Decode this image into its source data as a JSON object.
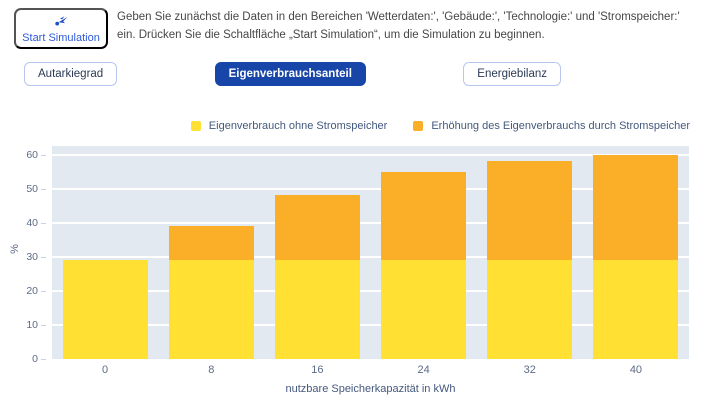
{
  "header": {
    "start_button_label": "Start Simulation",
    "instructions": "Geben Sie zunächst die Daten in den Bereichen 'Wetterdaten:', 'Gebäude:', 'Technologie:' und 'Stromspeicher:' ein. Drücken Sie die Schaltfläche „Start Simulation“, um die Simulation zu beginnen."
  },
  "tabs": [
    {
      "label": "Autarkiegrad",
      "active": false
    },
    {
      "label": "Eigenverbrauchsanteil",
      "active": true
    },
    {
      "label": "Energiebilanz",
      "active": false
    }
  ],
  "colors": {
    "accent": "#1846a8",
    "accent_text": "#2e5bd7",
    "button_border": "#b9c6f0",
    "plot_background": "#e3e9f1",
    "axis_text": "#5d6b85",
    "legend_text": "#44597e",
    "instruction_text": "#474747"
  },
  "chart_data": {
    "type": "bar",
    "stacked": true,
    "categories": [
      "0",
      "8",
      "16",
      "24",
      "32",
      "40"
    ],
    "series": [
      {
        "name": "Eigenverbrauch ohne Stromspeicher",
        "color": "#FFE033",
        "values": [
          29,
          29,
          29,
          29,
          29,
          29
        ]
      },
      {
        "name": "Erhöhung des Eigenverbrauchs durch Stromspeicher",
        "color": "#FBAE27",
        "values": [
          0,
          10,
          19,
          26,
          29,
          31
        ]
      }
    ],
    "stack_totals": [
      29,
      39,
      48,
      55,
      58,
      60
    ],
    "xlabel": "nutzbare Speicherkapazität in kWh",
    "ylabel": "%",
    "ylim": [
      0,
      62.5
    ],
    "yticks": [
      0,
      10,
      20,
      30,
      40,
      50,
      60
    ],
    "grid": true,
    "legend_position": "top-right"
  }
}
